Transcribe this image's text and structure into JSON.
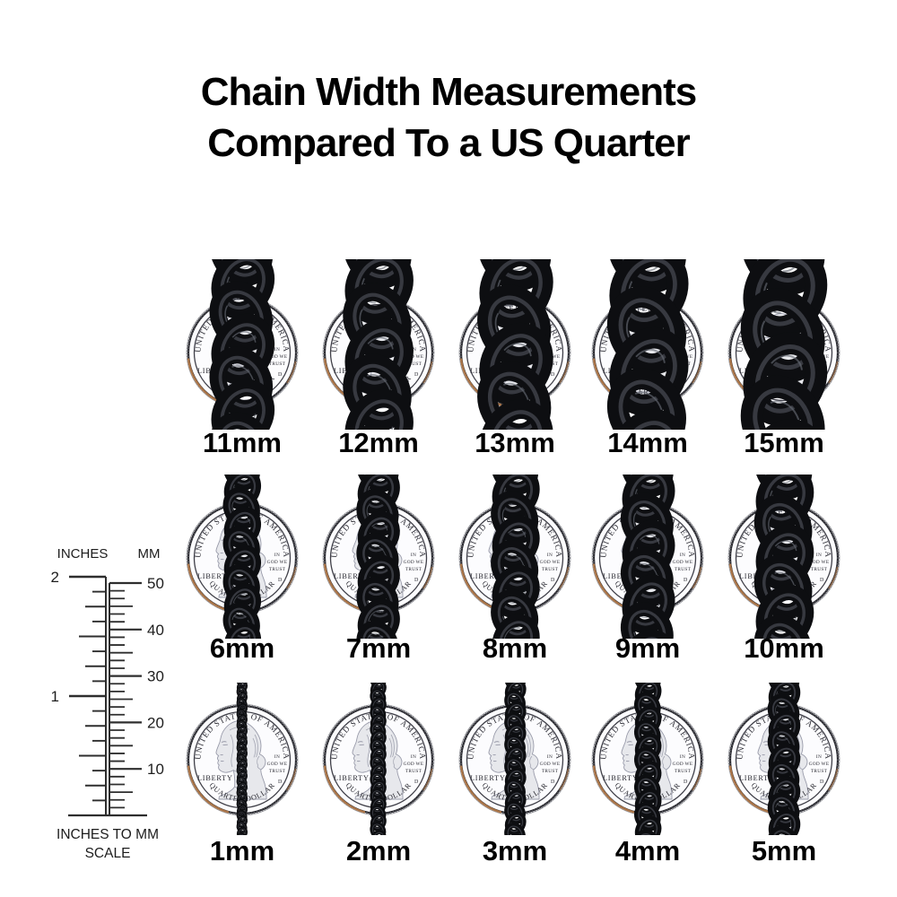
{
  "title": {
    "line1": "Chain Width Measurements",
    "line2": "Compared To a US Quarter"
  },
  "ruler": {
    "left_header": "INCHES",
    "right_header": "MM",
    "inch_labels": [
      "2",
      "1"
    ],
    "mm_labels": [
      "50",
      "40",
      "30",
      "20",
      "10"
    ],
    "caption_line1": "INCHES TO MM",
    "caption_line2": "SCALE"
  },
  "coin": {
    "top_text": "UNITED STATES OF AMERICA",
    "bottom_text": "QUARTER DOLLAR",
    "left_text": "LIBERTY",
    "motto_lines": [
      "IN",
      "GOD WE",
      "TRUST"
    ],
    "mint_mark": "D"
  },
  "rows": [
    {
      "items": [
        {
          "label": "11mm",
          "mm": 11
        },
        {
          "label": "12mm",
          "mm": 12
        },
        {
          "label": "13mm",
          "mm": 13
        },
        {
          "label": "14mm",
          "mm": 14
        },
        {
          "label": "15mm",
          "mm": 15
        }
      ]
    },
    {
      "items": [
        {
          "label": "6mm",
          "mm": 6
        },
        {
          "label": "7mm",
          "mm": 7
        },
        {
          "label": "8mm",
          "mm": 8
        },
        {
          "label": "9mm",
          "mm": 9
        },
        {
          "label": "10mm",
          "mm": 10
        }
      ]
    },
    {
      "items": [
        {
          "label": "1mm",
          "mm": 1
        },
        {
          "label": "2mm",
          "mm": 2
        },
        {
          "label": "3mm",
          "mm": 3
        },
        {
          "label": "4mm",
          "mm": 4
        },
        {
          "label": "5mm",
          "mm": 5
        }
      ]
    }
  ],
  "colors": {
    "background": "#ffffff",
    "text": "#000000",
    "chain_dark": "#0d0e11",
    "chain_mid": "#3c3e46",
    "chain_glint": "#666a73",
    "coin_rim": "#26262c",
    "coin_face": "#fcfcfe",
    "coin_copper_edge": "#b57a48",
    "bust_fill": "#e7e8ec",
    "bust_line": "#999baa"
  }
}
